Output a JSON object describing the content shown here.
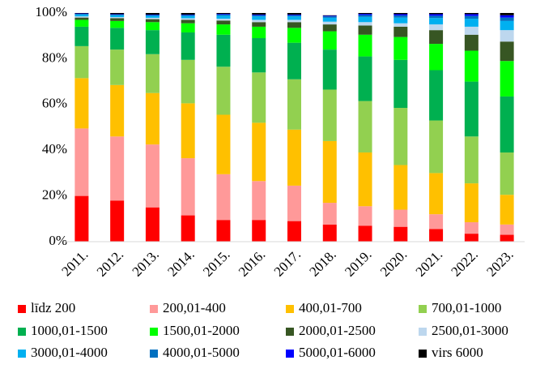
{
  "chart_data": {
    "type": "stacked_bar",
    "categories": [
      "2011.",
      "2012.",
      "2013.",
      "2014.",
      "2015.",
      "2016.",
      "2017.",
      "2018.",
      "2019.",
      "2020.",
      "2021.",
      "2022.",
      "2023."
    ],
    "series": [
      {
        "name": "līdz 200",
        "color": "#ff0000",
        "values": [
          20,
          18,
          15,
          11.5,
          9.5,
          9.5,
          9,
          7.5,
          7,
          6.5,
          5.5,
          3.5,
          3
        ]
      },
      {
        "name": "200,01-400",
        "color": "#ff9999",
        "values": [
          29.5,
          28,
          27.5,
          25,
          20,
          17,
          15.5,
          9.5,
          8.5,
          7.5,
          6.5,
          5,
          4.5
        ]
      },
      {
        "name": "400,01-700",
        "color": "#ffc000",
        "values": [
          22,
          22.5,
          22.5,
          24,
          26,
          25.5,
          24.5,
          27,
          23.5,
          19.5,
          18,
          17,
          13
        ]
      },
      {
        "name": "700,01-1000",
        "color": "#92d050",
        "values": [
          14,
          15.5,
          17,
          19,
          21,
          22,
          22,
          22.5,
          22.5,
          25,
          23,
          20.5,
          18.5
        ]
      },
      {
        "name": "1000,01-1500",
        "color": "#00b050",
        "values": [
          8.5,
          9.5,
          10.5,
          12,
          14,
          15,
          16,
          17.5,
          19.5,
          21,
          22,
          24,
          24.5
        ]
      },
      {
        "name": "1500,01-2000",
        "color": "#00ff00",
        "values": [
          3,
          3,
          3.5,
          4,
          4.5,
          5,
          6.5,
          8,
          9.5,
          10,
          11.5,
          13.5,
          15.5
        ]
      },
      {
        "name": "2000,01-2500",
        "color": "#375623",
        "values": [
          1,
          1.2,
          1.3,
          1.5,
          1.7,
          2,
          2.5,
          3,
          4,
          4.5,
          6,
          7,
          8.5
        ]
      },
      {
        "name": "2500,01-3000",
        "color": "#bdd7ee",
        "values": [
          0.5,
          0.5,
          0.6,
          0.7,
          0.8,
          1,
          1,
          1.2,
          1.5,
          1.5,
          2.5,
          3.5,
          5
        ]
      },
      {
        "name": "3000,01-4000",
        "color": "#00b0f0",
        "values": [
          0.8,
          0.8,
          0.9,
          1,
          1.3,
          1.5,
          1.5,
          1.7,
          2.3,
          2.5,
          2.8,
          3.5,
          4
        ]
      },
      {
        "name": "4000,01-5000",
        "color": "#0070c0",
        "values": [
          0.3,
          0.3,
          0.3,
          0.4,
          0.5,
          0.5,
          0.5,
          0.6,
          0.8,
          0.9,
          1,
          1.2,
          1.5
        ]
      },
      {
        "name": "5000,01-6000",
        "color": "#0000ff",
        "values": [
          0.2,
          0.2,
          0.2,
          0.2,
          0.3,
          0.3,
          0.3,
          0.3,
          0.5,
          0.6,
          0.7,
          0.8,
          1
        ]
      },
      {
        "name": "virs 6000",
        "color": "#000000",
        "values": [
          0.2,
          0.5,
          0.7,
          0.7,
          0.4,
          0.7,
          0.7,
          0.2,
          0.4,
          0.5,
          0.5,
          0.5,
          1
        ]
      }
    ],
    "ylim": [
      0,
      100
    ],
    "yticks": [
      {
        "value": 0,
        "label": "0%"
      },
      {
        "value": 20,
        "label": "20%"
      },
      {
        "value": 40,
        "label": "40%"
      },
      {
        "value": 60,
        "label": "60%"
      },
      {
        "value": 80,
        "label": "80%"
      },
      {
        "value": 100,
        "label": "100%"
      }
    ],
    "grid": false,
    "legend": "bottom"
  }
}
